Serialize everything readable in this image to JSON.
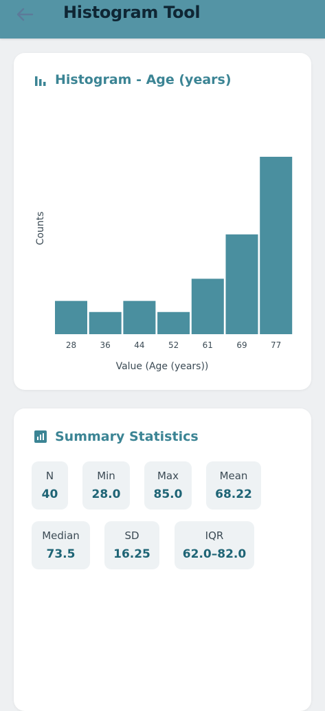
{
  "appbar": {
    "title": "Histogram Tool",
    "back_icon": "arrow-left-icon"
  },
  "histogram": {
    "title": "Histogram - Age (years)",
    "icon": "bar-chart-icon",
    "accent": "#4a8f9f"
  },
  "chart_data": {
    "type": "bar",
    "title": "Histogram - Age (years)",
    "xlabel": "Value (Age (years))",
    "ylabel": "Counts",
    "categories": [
      "28",
      "36",
      "44",
      "52",
      "61",
      "69",
      "77"
    ],
    "values": [
      3,
      2,
      3,
      2,
      5,
      9,
      16
    ],
    "ylim": [
      0,
      16
    ],
    "grid": false,
    "legend": "none",
    "bar_color": "#4a8f9f"
  },
  "summary": {
    "title": "Summary Statistics",
    "icon": "stats-icon",
    "stats": [
      {
        "label": "N",
        "value": "40"
      },
      {
        "label": "Min",
        "value": "28.0"
      },
      {
        "label": "Max",
        "value": "85.0"
      },
      {
        "label": "Mean",
        "value": "68.22"
      },
      {
        "label": "Median",
        "value": "73.5"
      },
      {
        "label": "SD",
        "value": "16.25"
      },
      {
        "label": "IQR",
        "value": "62.0–82.0"
      }
    ]
  }
}
